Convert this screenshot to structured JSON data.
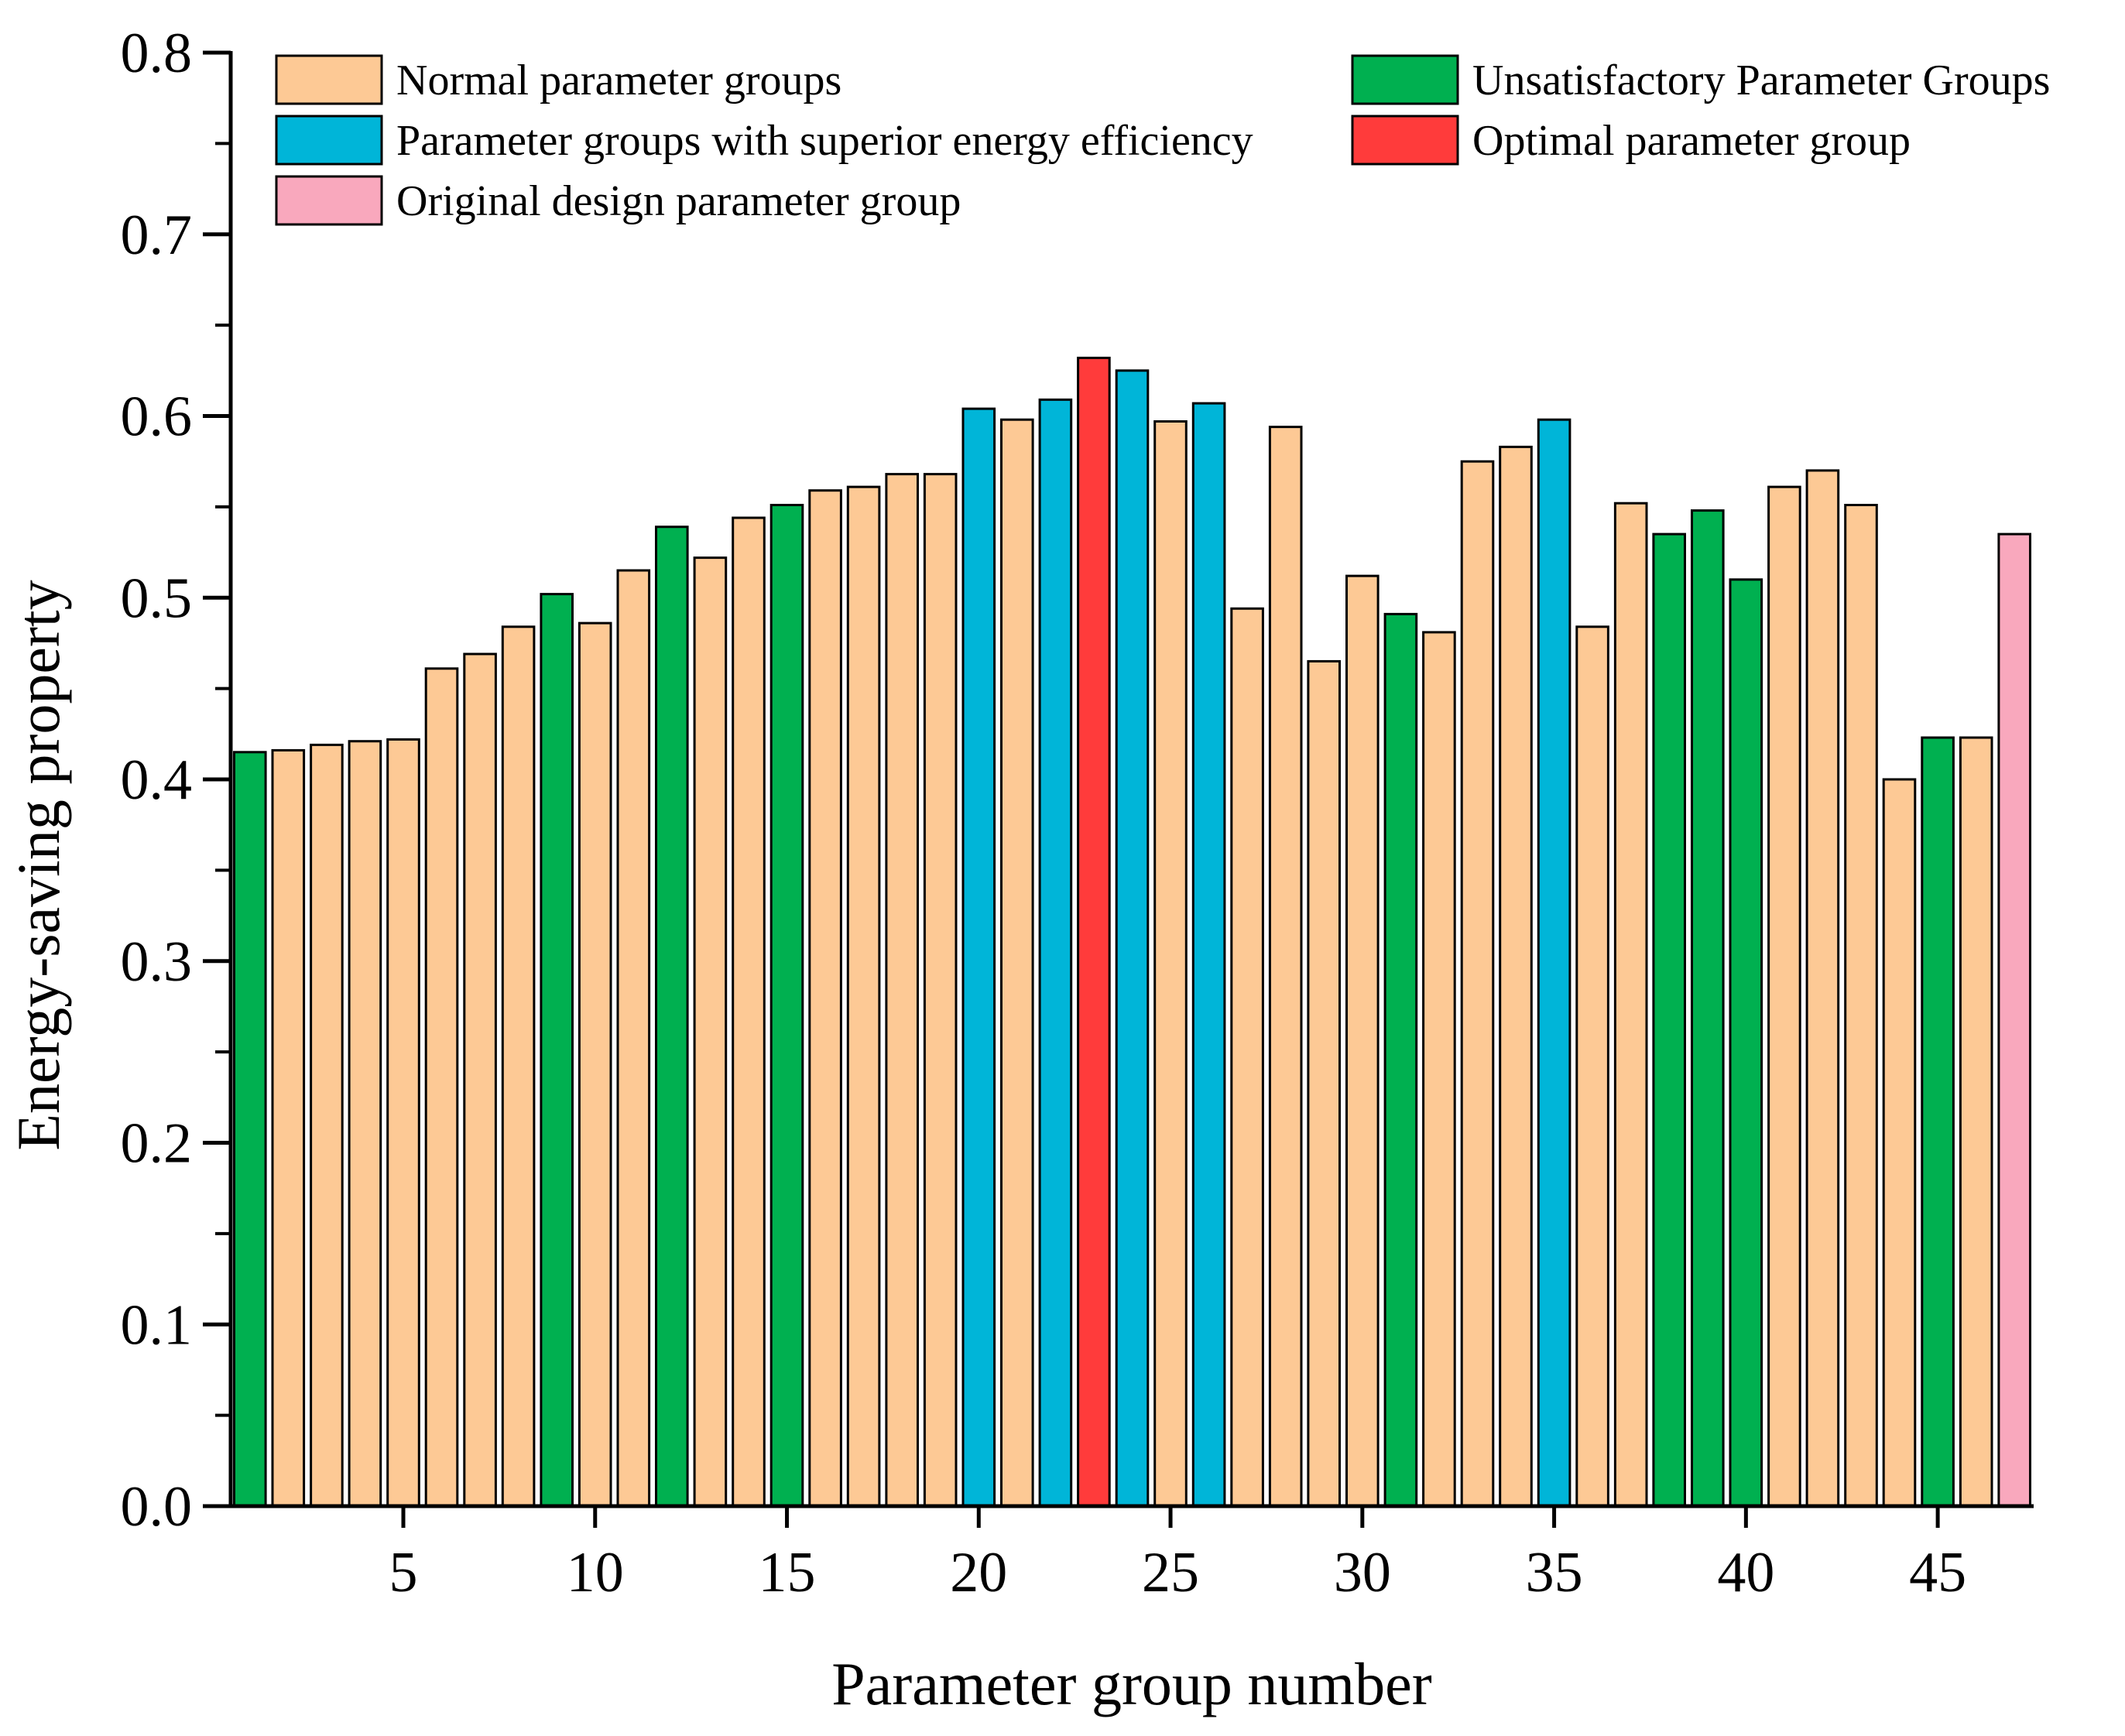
{
  "chart_data": {
    "type": "bar",
    "title": "",
    "xlabel": "Parameter group number",
    "ylabel": "Energy-saving property",
    "xlim": [
      0.5,
      47.5
    ],
    "ylim": [
      0,
      0.8
    ],
    "xticks": [
      5,
      10,
      15,
      20,
      25,
      30,
      35,
      40,
      45
    ],
    "yticks": [
      0.0,
      0.1,
      0.2,
      0.3,
      0.4,
      0.5,
      0.6,
      0.7,
      0.8
    ],
    "ytick_labels": [
      "0.0",
      "0.1",
      "0.2",
      "0.3",
      "0.4",
      "0.5",
      "0.6",
      "0.7",
      "0.8"
    ],
    "grid": false,
    "legend_position": "top",
    "categories": [
      {
        "key": "normal",
        "label": "Normal parameter groups",
        "color": "#FDC995"
      },
      {
        "key": "unsatisfactory",
        "label": "Unsatisfactory Parameter Groups",
        "color": "#00B050"
      },
      {
        "key": "superior",
        "label": "Parameter groups with superior energy efficiency",
        "color": "#00B5D8"
      },
      {
        "key": "optimal",
        "label": "Optimal parameter group",
        "color": "#FF3B3B"
      },
      {
        "key": "original",
        "label": "Original design parameter group",
        "color": "#F9A8BD"
      }
    ],
    "bars": [
      {
        "x": 1,
        "value": 0.415,
        "group": "unsatisfactory"
      },
      {
        "x": 2,
        "value": 0.416,
        "group": "normal"
      },
      {
        "x": 3,
        "value": 0.419,
        "group": "normal"
      },
      {
        "x": 4,
        "value": 0.421,
        "group": "normal"
      },
      {
        "x": 5,
        "value": 0.422,
        "group": "normal"
      },
      {
        "x": 6,
        "value": 0.461,
        "group": "normal"
      },
      {
        "x": 7,
        "value": 0.469,
        "group": "normal"
      },
      {
        "x": 8,
        "value": 0.484,
        "group": "normal"
      },
      {
        "x": 9,
        "value": 0.502,
        "group": "unsatisfactory"
      },
      {
        "x": 10,
        "value": 0.486,
        "group": "normal"
      },
      {
        "x": 11,
        "value": 0.515,
        "group": "normal"
      },
      {
        "x": 12,
        "value": 0.539,
        "group": "unsatisfactory"
      },
      {
        "x": 13,
        "value": 0.522,
        "group": "normal"
      },
      {
        "x": 14,
        "value": 0.544,
        "group": "normal"
      },
      {
        "x": 15,
        "value": 0.551,
        "group": "unsatisfactory"
      },
      {
        "x": 16,
        "value": 0.559,
        "group": "normal"
      },
      {
        "x": 17,
        "value": 0.561,
        "group": "normal"
      },
      {
        "x": 18,
        "value": 0.568,
        "group": "normal"
      },
      {
        "x": 19,
        "value": 0.568,
        "group": "normal"
      },
      {
        "x": 20,
        "value": 0.604,
        "group": "superior"
      },
      {
        "x": 21,
        "value": 0.598,
        "group": "normal"
      },
      {
        "x": 22,
        "value": 0.609,
        "group": "superior"
      },
      {
        "x": 23,
        "value": 0.632,
        "group": "optimal"
      },
      {
        "x": 24,
        "value": 0.625,
        "group": "superior"
      },
      {
        "x": 25,
        "value": 0.597,
        "group": "normal"
      },
      {
        "x": 26,
        "value": 0.607,
        "group": "superior"
      },
      {
        "x": 27,
        "value": 0.494,
        "group": "normal"
      },
      {
        "x": 28,
        "value": 0.594,
        "group": "normal"
      },
      {
        "x": 29,
        "value": 0.465,
        "group": "normal"
      },
      {
        "x": 30,
        "value": 0.512,
        "group": "normal"
      },
      {
        "x": 31,
        "value": 0.491,
        "group": "unsatisfactory"
      },
      {
        "x": 32,
        "value": 0.481,
        "group": "normal"
      },
      {
        "x": 33,
        "value": 0.575,
        "group": "normal"
      },
      {
        "x": 34,
        "value": 0.583,
        "group": "normal"
      },
      {
        "x": 35,
        "value": 0.598,
        "group": "superior"
      },
      {
        "x": 36,
        "value": 0.484,
        "group": "normal"
      },
      {
        "x": 37,
        "value": 0.552,
        "group": "normal"
      },
      {
        "x": 38,
        "value": 0.535,
        "group": "unsatisfactory"
      },
      {
        "x": 39,
        "value": 0.548,
        "group": "unsatisfactory"
      },
      {
        "x": 40,
        "value": 0.51,
        "group": "unsatisfactory"
      },
      {
        "x": 41,
        "value": 0.561,
        "group": "normal"
      },
      {
        "x": 42,
        "value": 0.57,
        "group": "normal"
      },
      {
        "x": 43,
        "value": 0.551,
        "group": "normal"
      },
      {
        "x": 44,
        "value": 0.4,
        "group": "normal"
      },
      {
        "x": 45,
        "value": 0.423,
        "group": "unsatisfactory"
      },
      {
        "x": 46,
        "value": 0.423,
        "group": "normal"
      },
      {
        "x": 47,
        "value": 0.535,
        "group": "original"
      }
    ]
  }
}
